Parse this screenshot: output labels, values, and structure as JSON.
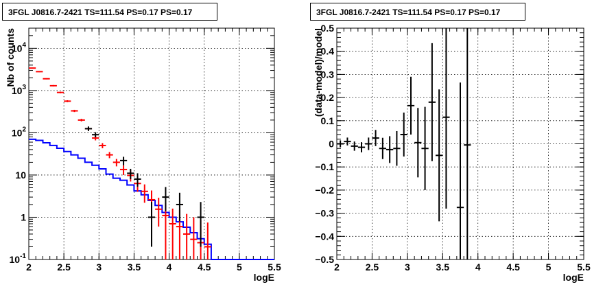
{
  "chart_data": [
    {
      "type": "histogram",
      "title": "3FGL J0816.7-2421 TS=111.54 PS=0.17 PS=0.17",
      "xlabel": "logE",
      "ylabel": "Nb of counts",
      "xlim": [
        2,
        5.5
      ],
      "ylim": [
        0.1,
        30000
      ],
      "yscale": "log",
      "grid": true,
      "x_ticks": [
        "2",
        "2.5",
        "3",
        "3.5",
        "4",
        "4.5",
        "5",
        "5.5"
      ],
      "y_ticks": [
        "10^{4}",
        "10^{3}",
        "10^{2}",
        "10",
        "1",
        "10^{-1}"
      ],
      "y_tick_values": [
        10000,
        1000,
        100,
        10,
        1,
        0.1
      ],
      "bin_edges": [
        2.0,
        2.1,
        2.2,
        2.3,
        2.4,
        2.5,
        2.6,
        2.7,
        2.8,
        2.9,
        3.0,
        3.1,
        3.2,
        3.3,
        3.4,
        3.5,
        3.6,
        3.7,
        3.8,
        3.9,
        4.0,
        4.1,
        4.2,
        4.3,
        4.4,
        4.5,
        4.6,
        4.7,
        4.8,
        4.9,
        5.0,
        5.1,
        5.2,
        5.3,
        5.4,
        5.5
      ],
      "series": [
        {
          "role": "blue-model-step",
          "color": "#0000ff",
          "values": [
            70,
            66,
            58,
            50,
            43,
            36,
            30,
            25,
            20,
            17,
            14,
            10.5,
            8.4,
            7.5,
            5.8,
            4.2,
            3.4,
            2.5,
            1.9,
            1.3,
            1.0,
            0.78,
            0.58,
            0.43,
            0.31,
            0.23,
            0.1,
            0.1,
            0.1,
            0.1,
            0.1,
            0.1,
            0.1,
            0.1,
            0.1
          ]
        },
        {
          "role": "red-model-points",
          "color": "#ff0000",
          "points": [
            {
              "x": 2.05,
              "y": 3400,
              "lo": 3300,
              "hi": 3500
            },
            {
              "x": 2.15,
              "y": 2800,
              "lo": 2720,
              "hi": 2880
            },
            {
              "x": 2.25,
              "y": 1900,
              "lo": 1840,
              "hi": 1960
            },
            {
              "x": 2.35,
              "y": 1300,
              "lo": 1250,
              "hi": 1350
            },
            {
              "x": 2.45,
              "y": 900,
              "lo": 860,
              "hi": 940
            },
            {
              "x": 2.55,
              "y": 560,
              "lo": 530,
              "hi": 590
            },
            {
              "x": 2.65,
              "y": 330,
              "lo": 310,
              "hi": 350
            },
            {
              "x": 2.75,
              "y": 200,
              "lo": 186,
              "hi": 214
            },
            {
              "x": 2.85,
              "y": 125,
              "lo": 114,
              "hi": 136
            },
            {
              "x": 2.95,
              "y": 75,
              "lo": 66,
              "hi": 84
            },
            {
              "x": 3.05,
              "y": 50,
              "lo": 43,
              "hi": 57
            },
            {
              "x": 3.15,
              "y": 30,
              "lo": 25,
              "hi": 35
            },
            {
              "x": 3.25,
              "y": 20,
              "lo": 16,
              "hi": 24
            },
            {
              "x": 3.35,
              "y": 13.5,
              "lo": 10,
              "hi": 17
            },
            {
              "x": 3.45,
              "y": 9.8,
              "lo": 7,
              "hi": 13
            },
            {
              "x": 3.55,
              "y": 6.3,
              "lo": 4,
              "hi": 8.8
            },
            {
              "x": 3.65,
              "y": 4.1,
              "lo": 2.2,
              "hi": 6
            },
            {
              "x": 3.75,
              "y": 2.6,
              "lo": 1.2,
              "hi": 4.3
            },
            {
              "x": 3.85,
              "y": 1.55,
              "lo": 0.6,
              "hi": 2.9
            },
            {
              "x": 3.95,
              "y": 1.1,
              "lo": 0.1,
              "hi": 2.2
            },
            {
              "x": 4.05,
              "y": 0.7,
              "lo": 0.1,
              "hi": 1.6
            },
            {
              "x": 4.15,
              "y": 0.6,
              "lo": 0.1,
              "hi": 1.5
            },
            {
              "x": 4.25,
              "y": 0.4,
              "lo": 0.1,
              "hi": 1.2
            },
            {
              "x": 4.35,
              "y": 0.3,
              "lo": 0.1,
              "hi": 1.0
            },
            {
              "x": 4.45,
              "y": 0.25,
              "lo": 0.1,
              "hi": 0.85
            },
            {
              "x": 4.55,
              "y": 0.2,
              "lo": 0.1,
              "hi": 0.75
            }
          ]
        },
        {
          "role": "black-data-points",
          "color": "#000000",
          "points": [
            {
              "x": 2.85,
              "y": 125,
              "lo": 110,
              "hi": 141
            },
            {
              "x": 2.95,
              "y": 90,
              "lo": 78,
              "hi": 103
            },
            {
              "x": 3.35,
              "y": 22,
              "lo": 17,
              "hi": 27
            },
            {
              "x": 3.45,
              "y": 11,
              "lo": 8,
              "hi": 14
            },
            {
              "x": 3.55,
              "y": 8,
              "lo": 5.3,
              "hi": 11
            },
            {
              "x": 3.75,
              "y": 1.0,
              "lo": 0.2,
              "hi": 2.3
            },
            {
              "x": 3.95,
              "y": 3.0,
              "lo": 1.4,
              "hi": 5.2
            },
            {
              "x": 4.15,
              "y": 2.0,
              "lo": 0.8,
              "hi": 3.8
            },
            {
              "x": 4.45,
              "y": 1.0,
              "lo": 0.2,
              "hi": 2.3
            }
          ]
        }
      ]
    },
    {
      "type": "scatter",
      "title": "3FGL J0816.7-2421 TS=111.54 PS=0.17 PS=0.17",
      "xlabel": "logE",
      "ylabel": "(data-model)/model",
      "xlim": [
        2,
        5.5
      ],
      "ylim": [
        -0.5,
        0.5
      ],
      "grid": true,
      "x_ticks": [
        "2",
        "2.5",
        "3",
        "3.5",
        "4",
        "4.5",
        "5",
        "5.5"
      ],
      "y_ticks": [
        "0.5",
        "0.4",
        "0.3",
        "0.2",
        "0.1",
        "0",
        "−0.1",
        "−0.2",
        "−0.3",
        "−0.4",
        "−0.5"
      ],
      "y_tick_values": [
        0.5,
        0.4,
        0.3,
        0.2,
        0.1,
        0,
        -0.1,
        -0.2,
        -0.3,
        -0.4,
        -0.5
      ],
      "series": [
        {
          "role": "residuals",
          "color": "#000000",
          "points": [
            {
              "x": 2.05,
              "y": 0.0,
              "err": 0.015
            },
            {
              "x": 2.15,
              "y": 0.01,
              "err": 0.017
            },
            {
              "x": 2.25,
              "y": -0.01,
              "err": 0.02
            },
            {
              "x": 2.35,
              "y": -0.015,
              "err": 0.022
            },
            {
              "x": 2.45,
              "y": 0.0,
              "err": 0.027
            },
            {
              "x": 2.55,
              "y": 0.025,
              "err": 0.035
            },
            {
              "x": 2.65,
              "y": -0.02,
              "err": 0.046
            },
            {
              "x": 2.75,
              "y": -0.025,
              "err": 0.058
            },
            {
              "x": 2.85,
              "y": -0.02,
              "err": 0.075
            },
            {
              "x": 2.95,
              "y": 0.04,
              "err": 0.095
            },
            {
              "x": 3.05,
              "y": 0.165,
              "err": 0.125
            },
            {
              "x": 3.15,
              "y": 0.005,
              "err": 0.15
            },
            {
              "x": 3.25,
              "y": -0.02,
              "err": 0.18
            },
            {
              "x": 3.35,
              "y": 0.18,
              "err": 0.255
            },
            {
              "x": 3.45,
              "y": -0.05,
              "err": 0.285
            },
            {
              "x": 3.55,
              "y": 0.115,
              "err": 0.395
            },
            {
              "x": 3.75,
              "y": -0.275,
              "err": 0.54
            },
            {
              "x": 3.85,
              "y": -0.005,
              "err": 0.6
            }
          ]
        }
      ]
    }
  ]
}
